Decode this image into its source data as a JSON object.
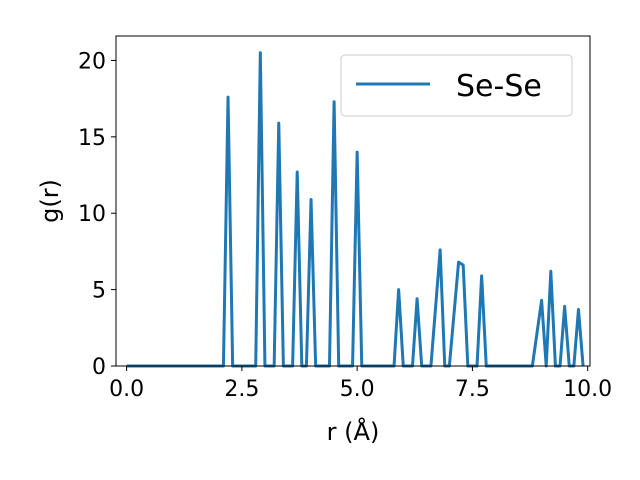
{
  "chart_data": {
    "type": "line",
    "title": "",
    "xlabel": "r (Å)",
    "ylabel": "g(r)",
    "xlim": [
      -0.23,
      10.05
    ],
    "ylim": [
      0,
      21.6
    ],
    "xticks": [
      0.0,
      2.5,
      5.0,
      7.5,
      10.0
    ],
    "xtick_labels": [
      "0.0",
      "2.5",
      "5.0",
      "7.5",
      "10.0"
    ],
    "yticks": [
      0,
      5,
      10,
      15,
      20
    ],
    "ytick_labels": [
      "0",
      "5",
      "10",
      "15",
      "20"
    ],
    "grid": false,
    "legend_position": "top-right",
    "color": "#1f77b4",
    "series": [
      {
        "name": "Se-Se",
        "x": [
          0.0,
          2.1,
          2.2,
          2.3,
          2.8,
          2.9,
          3.0,
          3.2,
          3.3,
          3.4,
          3.6,
          3.7,
          3.8,
          3.9,
          4.0,
          4.1,
          4.4,
          4.5,
          4.6,
          4.9,
          5.0,
          5.1,
          5.8,
          5.9,
          6.0,
          6.2,
          6.3,
          6.4,
          6.6,
          6.8,
          6.9,
          7.0,
          7.2,
          7.3,
          7.4,
          7.6,
          7.7,
          7.8,
          8.8,
          9.0,
          9.1,
          9.2,
          9.3,
          9.4,
          9.5,
          9.6,
          9.7,
          9.8,
          9.9
        ],
        "y": [
          0,
          0,
          17.6,
          0,
          0,
          20.5,
          0,
          0,
          15.9,
          0,
          0,
          12.7,
          0,
          0,
          10.9,
          0,
          0,
          17.3,
          0,
          0,
          14.0,
          0,
          0,
          5.0,
          0,
          0,
          4.4,
          0,
          0,
          7.6,
          0,
          0,
          6.8,
          6.6,
          0,
          0,
          5.9,
          0,
          0,
          4.3,
          0,
          6.2,
          0,
          0,
          3.9,
          0,
          0,
          3.7,
          0
        ]
      }
    ]
  }
}
